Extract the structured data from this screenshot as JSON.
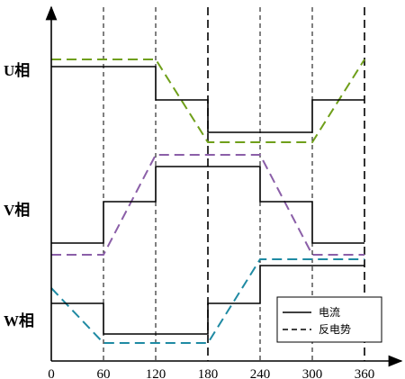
{
  "chart_data": {
    "type": "line",
    "x_ticks": [
      "0",
      "60",
      "120",
      "180",
      "240",
      "300",
      "360"
    ],
    "phases": [
      {
        "label": "U相",
        "current": [
          [
            0,
            1
          ],
          [
            120,
            1
          ],
          [
            120,
            0
          ],
          [
            180,
            0
          ],
          [
            180,
            -1
          ],
          [
            300,
            -1
          ],
          [
            300,
            0
          ],
          [
            360,
            0
          ]
        ],
        "back_emf": [
          [
            0,
            1
          ],
          [
            120,
            1
          ],
          [
            180,
            -1
          ],
          [
            300,
            -1
          ],
          [
            360,
            1
          ]
        ],
        "emf_color": "#6f9f1a"
      },
      {
        "label": "V相",
        "current": [
          [
            0,
            -1
          ],
          [
            60,
            -1
          ],
          [
            60,
            0
          ],
          [
            120,
            0
          ],
          [
            120,
            1
          ],
          [
            240,
            1
          ],
          [
            240,
            0
          ],
          [
            300,
            0
          ],
          [
            300,
            -1
          ],
          [
            360,
            -1
          ]
        ],
        "back_emf": [
          [
            0,
            -1
          ],
          [
            60,
            -1
          ],
          [
            120,
            1
          ],
          [
            240,
            1
          ],
          [
            300,
            -1
          ],
          [
            360,
            -1
          ]
        ],
        "emf_color": "#8b5fa8"
      },
      {
        "label": "W相",
        "current": [
          [
            0,
            0
          ],
          [
            60,
            0
          ],
          [
            60,
            -1
          ],
          [
            180,
            -1
          ],
          [
            180,
            0
          ],
          [
            240,
            0
          ],
          [
            240,
            1
          ],
          [
            360,
            1
          ]
        ],
        "back_emf": [
          [
            0,
            0
          ],
          [
            60,
            -1
          ],
          [
            180,
            -1
          ],
          [
            240,
            1
          ],
          [
            360,
            1
          ]
        ],
        "emf_color": "#1f8aa3"
      }
    ],
    "legend": [
      {
        "label": "电流",
        "style": "solid"
      },
      {
        "label": "反电势",
        "style": "dashed"
      }
    ]
  }
}
